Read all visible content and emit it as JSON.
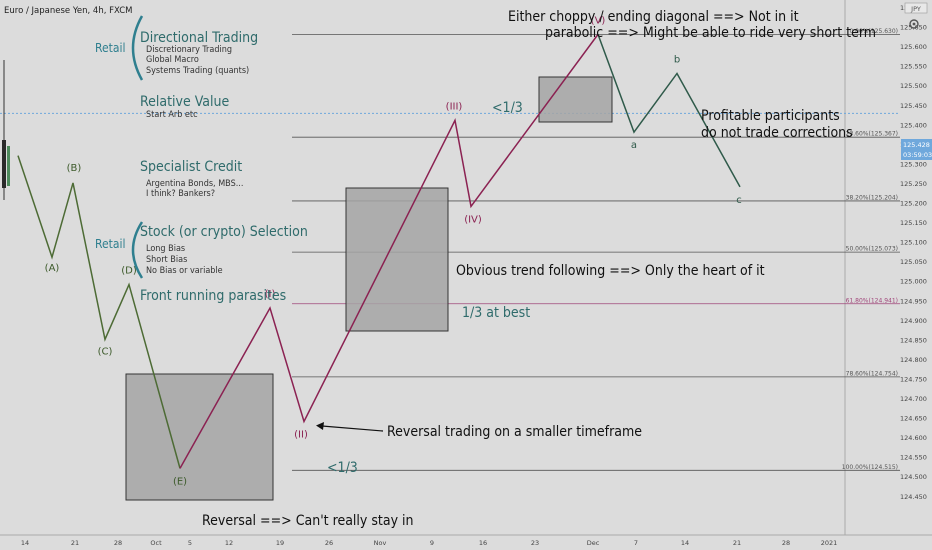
{
  "header": {
    "symbol": "Euro / Japanese Yen, 4h, FXCM",
    "currency_badge": "JPY",
    "settings_icon": "gear-icon"
  },
  "price_axis": {
    "labels": [
      "125.700",
      "125.650",
      "125.600",
      "125.550",
      "125.500",
      "125.450",
      "125.400",
      "125.350",
      "125.300",
      "125.250",
      "125.200",
      "125.150",
      "125.100",
      "125.050",
      "125.000",
      "124.950",
      "124.900",
      "124.850",
      "124.800",
      "124.750",
      "124.700",
      "124.650",
      "124.600",
      "124.550",
      "124.500",
      "124.450"
    ],
    "last_price": "125.428",
    "countdown": "03:59:03",
    "last_price_color": "#6fa8dc"
  },
  "time_axis": {
    "labels": [
      "14",
      "21",
      "28",
      "Oct",
      "5",
      "12",
      "19",
      "26",
      "Nov",
      "9",
      "16",
      "23",
      "Dec",
      "7",
      "14",
      "21",
      "28",
      "2021"
    ]
  },
  "chart_data": {
    "type": "line",
    "ylim": [
      124.43,
      125.73
    ],
    "series": [
      {
        "points": [
          [
            0,
            125.32
          ],
          [
            1,
            125.06
          ],
          [
            2,
            125.25
          ],
          [
            3,
            124.85
          ],
          [
            4,
            124.99
          ],
          [
            5,
            124.52
          ]
        ]
      },
      {
        "points": [
          [
            5,
            124.52
          ],
          [
            6,
            124.93
          ],
          [
            7,
            124.64
          ],
          [
            8,
            125.41
          ],
          [
            9,
            125.19
          ],
          [
            10,
            125.63
          ]
        ]
      },
      {
        "points": [
          [
            10,
            125.63
          ],
          [
            11,
            125.38
          ],
          [
            12,
            125.53
          ],
          [
            13,
            125.24
          ]
        ]
      }
    ],
    "fib_levels": [
      {
        "label": "0.00%(125.630)",
        "value": 125.63
      },
      {
        "label": "23.60%(125.367)",
        "value": 125.367
      },
      {
        "label": "38.20%(125.204)",
        "value": 125.204
      },
      {
        "label": "50.00%(125.073)",
        "value": 125.073
      },
      {
        "label": "61.80%(124.941)",
        "value": 124.941
      },
      {
        "label": "78.60%(124.754)",
        "value": 124.754
      },
      {
        "label": "100.00%(124.515)",
        "value": 124.515
      }
    ],
    "wave_labels": [
      "(A)",
      "(B)",
      "(C)",
      "(D)",
      "(E)",
      "(I)",
      "(II)",
      "(III)",
      "(IV)",
      "(V)",
      "a",
      "b",
      "c"
    ],
    "colors": {
      "corrective": "#4d6b35",
      "impulse": "#8b2252",
      "abc": "#2f5a4a",
      "fib": "#555555",
      "fib_618": "#a0457a"
    }
  },
  "annotations": {
    "retail_1": "Retail",
    "directional": "Directional Trading",
    "discretionary": "Discretionary Trading",
    "global_macro": "Global Macro",
    "systems": "Systems Trading (quants)",
    "relative_value": "Relative Value",
    "start_arb": "Start Arb etc",
    "specialist_credit": "Specialist Credit",
    "argentina": "Argentina Bonds, MBS...",
    "bankers": "I think? Bankers?",
    "retail_2": "Retail",
    "stock_selection": "Stock (or crypto) Selection",
    "long_bias": "Long Bias",
    "short_bias": "Short Bias",
    "no_bias": "No Bias or variable",
    "front_running": "Front running parasites",
    "choppy": "Either choppy / ending diagonal ==> Not in it",
    "parabolic": "parabolic ==> Might be able to ride very short term",
    "lt13_top": "<1/3",
    "profitable_1": "Profitable participants",
    "profitable_2": "do not trade corrections",
    "obvious_trend": "Obvious trend following ==> Only the heart of it",
    "third_best": "1/3 at best",
    "reversal_smaller": "Reversal trading on a smaller timeframe",
    "lt13_bottom": "<1/3",
    "reversal_stay": "Reversal ==> Can't really stay in"
  }
}
